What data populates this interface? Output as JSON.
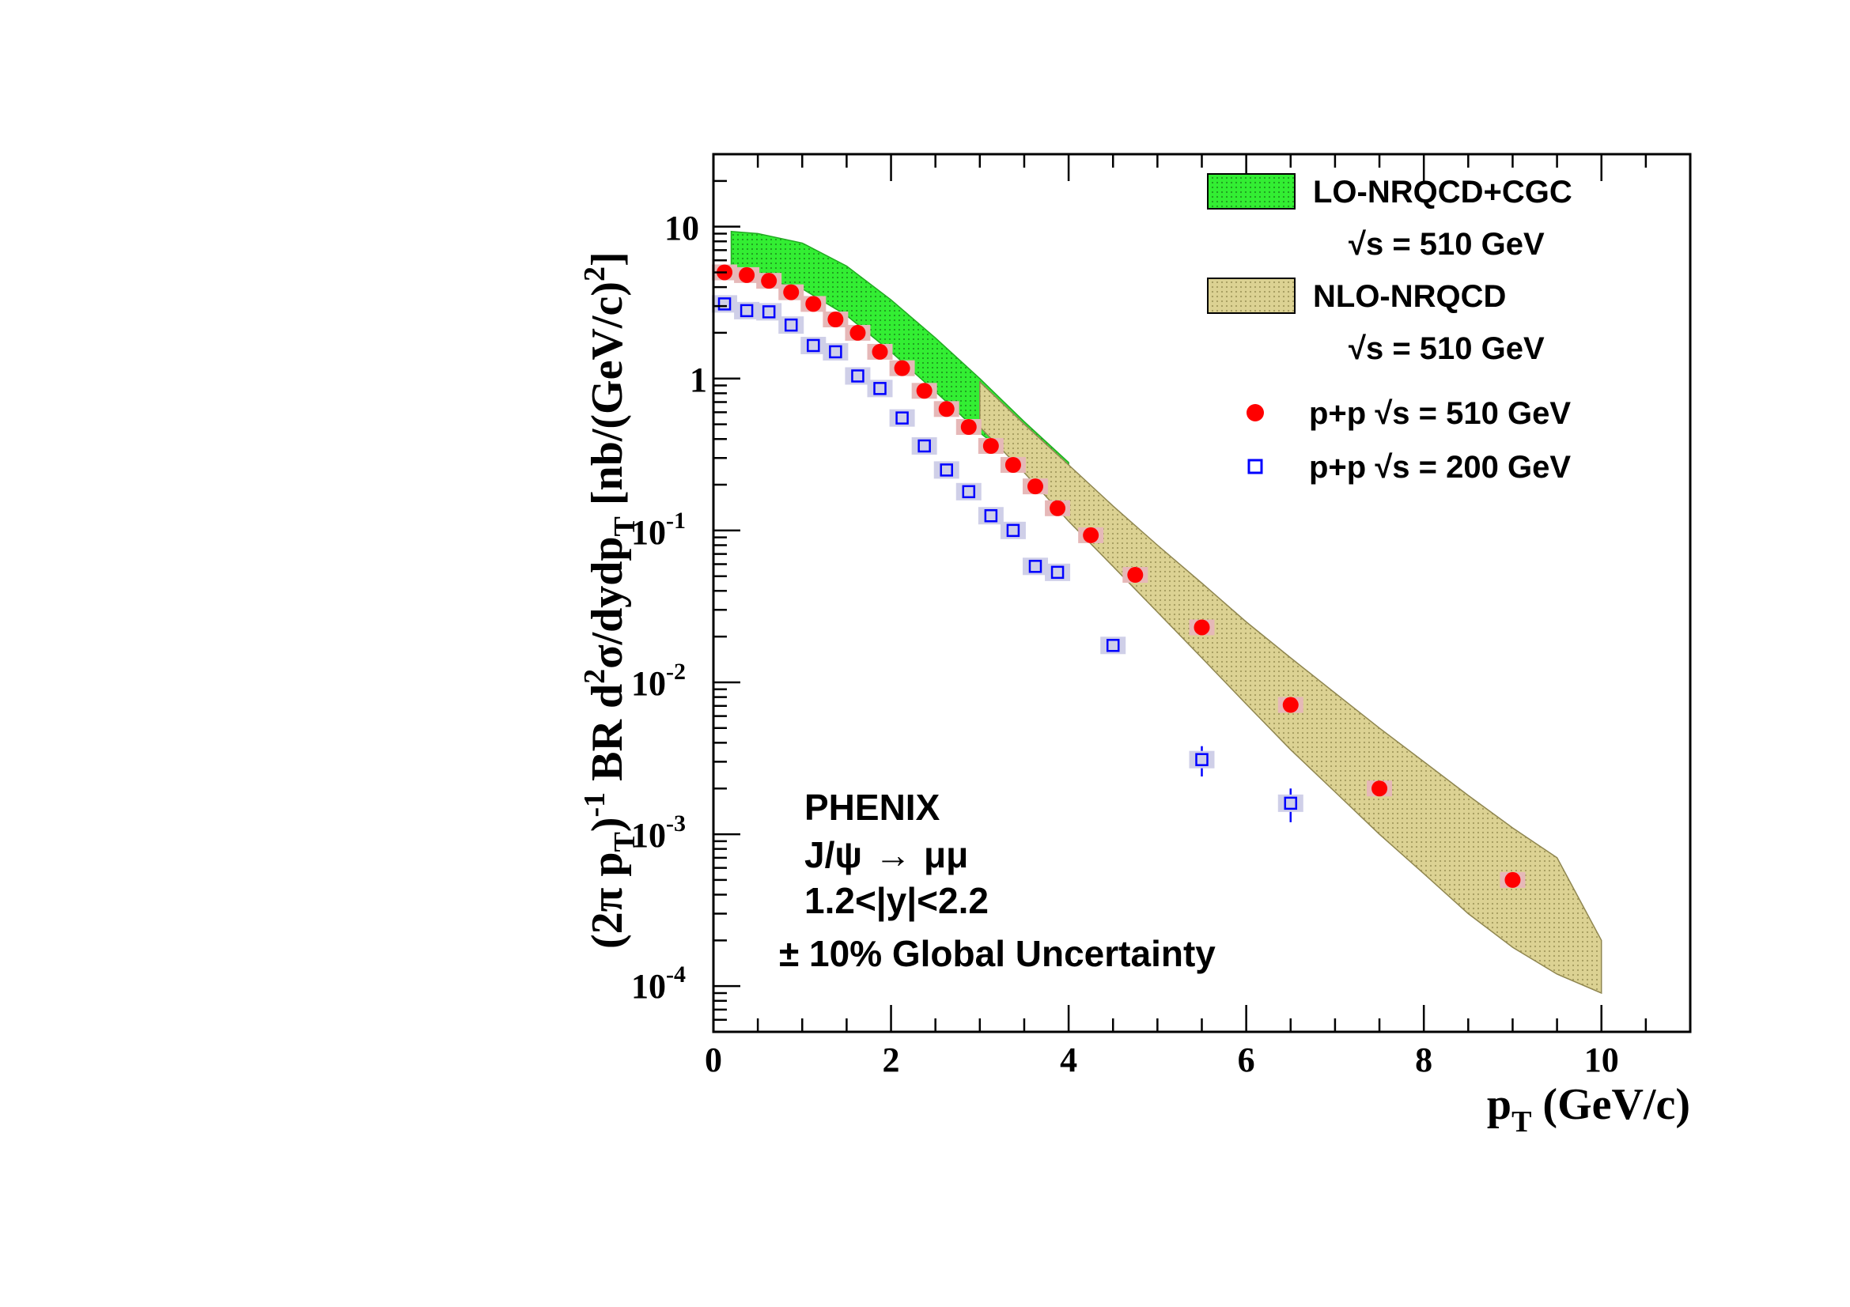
{
  "chart_data": {
    "type": "scatter",
    "xlabel": "p",
    "xlabel_sub": "T",
    "xlabel_units": " (GeV/c)",
    "ylabel_parts": {
      "p1": "(2π p",
      "p2": "T",
      "p3": ")",
      "p4": "-1",
      "p5": " BR d",
      "p6": "2",
      "p7": "σ/dydp",
      "p8": "T",
      "p9": " [nb/(GeV/c)",
      "p10": "2",
      "p11": "]"
    },
    "xlim": [
      0,
      11
    ],
    "ylim": [
      5e-05,
      30
    ],
    "y_scale": "log",
    "x_ticks": [
      0,
      2,
      4,
      6,
      8,
      10
    ],
    "x_tick_labels": [
      "0",
      "2",
      "4",
      "6",
      "8",
      "10"
    ],
    "y_tick_labels": {
      "t1": {
        "base": "10",
        "exp": "-4",
        "value": 0.0001
      },
      "t2": {
        "base": "10",
        "exp": "-3",
        "value": 0.001
      },
      "t3": {
        "base": "10",
        "exp": "-2",
        "value": 0.01
      },
      "t4": {
        "base": "10",
        "exp": "-1",
        "value": 0.1
      },
      "t5": {
        "base": "1",
        "exp": "",
        "value": 1
      },
      "t6": {
        "base": "10",
        "exp": "",
        "value": 10
      }
    },
    "grid": false,
    "legend_position": "top-right",
    "series": [
      {
        "name": "p+p √s = 510 GeV",
        "marker": "filled-circle",
        "color": "#ff0000",
        "x": [
          0.125,
          0.375,
          0.625,
          0.875,
          1.125,
          1.375,
          1.625,
          1.875,
          2.125,
          2.375,
          2.625,
          2.875,
          3.125,
          3.375,
          3.625,
          3.875,
          4.25,
          4.75,
          5.5,
          6.5,
          7.5,
          9.0
        ],
        "y": [
          5.0,
          4.8,
          4.4,
          3.7,
          3.1,
          2.45,
          2.0,
          1.5,
          1.17,
          0.83,
          0.63,
          0.48,
          0.36,
          0.27,
          0.195,
          0.14,
          0.093,
          0.051,
          0.023,
          0.0071,
          0.002,
          0.0005
        ]
      },
      {
        "name": "p+p √s = 200 GeV",
        "marker": "open-square",
        "color": "#0000ff",
        "x": [
          0.125,
          0.375,
          0.625,
          0.875,
          1.125,
          1.375,
          1.625,
          1.875,
          2.125,
          2.375,
          2.625,
          2.875,
          3.125,
          3.375,
          3.625,
          3.875,
          4.5,
          5.5,
          6.5
        ],
        "y": [
          3.1,
          2.8,
          2.75,
          2.25,
          1.65,
          1.5,
          1.04,
          0.86,
          0.55,
          0.36,
          0.25,
          0.18,
          0.125,
          0.1,
          0.058,
          0.053,
          0.0175,
          0.0031,
          0.0016
        ],
        "yerr": [
          0,
          0,
          0,
          0,
          0,
          0,
          0,
          0,
          0,
          0,
          0,
          0,
          0,
          0,
          0,
          0,
          0,
          0.0007,
          0.0004
        ]
      }
    ],
    "bands": [
      {
        "name": "LO-NRQCD+CGC",
        "sub": "√s = 510 GeV",
        "color": "#33ee33",
        "edge": "#22aa22",
        "x": [
          0.2,
          0.5,
          1.0,
          1.5,
          2.0,
          2.5,
          3.0,
          3.5,
          4.0
        ],
        "upper": [
          9.3,
          9.0,
          7.8,
          5.5,
          3.3,
          1.85,
          1.0,
          0.52,
          0.28
        ],
        "lower": [
          4.7,
          4.6,
          3.9,
          2.6,
          1.5,
          0.82,
          0.44,
          0.26,
          0.21
        ]
      },
      {
        "name": "NLO-NRQCD",
        "sub": "√s = 510 GeV",
        "color": "#d9cf8c",
        "edge": "#8f8650",
        "x": [
          3.0,
          3.5,
          4.0,
          4.5,
          5.0,
          5.5,
          6.0,
          6.5,
          7.0,
          7.5,
          8.0,
          8.5,
          9.0,
          9.5,
          10.0
        ],
        "upper": [
          0.95,
          0.5,
          0.27,
          0.145,
          0.08,
          0.045,
          0.025,
          0.0145,
          0.0085,
          0.005,
          0.003,
          0.0018,
          0.0011,
          0.0007,
          0.0002
        ],
        "lower": [
          0.48,
          0.24,
          0.115,
          0.058,
          0.029,
          0.0145,
          0.0072,
          0.0036,
          0.0019,
          0.001,
          0.00055,
          0.0003,
          0.00018,
          0.00012,
          9e-05
        ]
      }
    ],
    "annotations": {
      "experiment": "PHENIX",
      "channel_a": "J/ψ",
      "channel_arrow": "→",
      "channel_b": "μμ",
      "rapidity": "1.2<|y|<2.2",
      "global_unc": "± 10% Global Uncertainty"
    }
  }
}
